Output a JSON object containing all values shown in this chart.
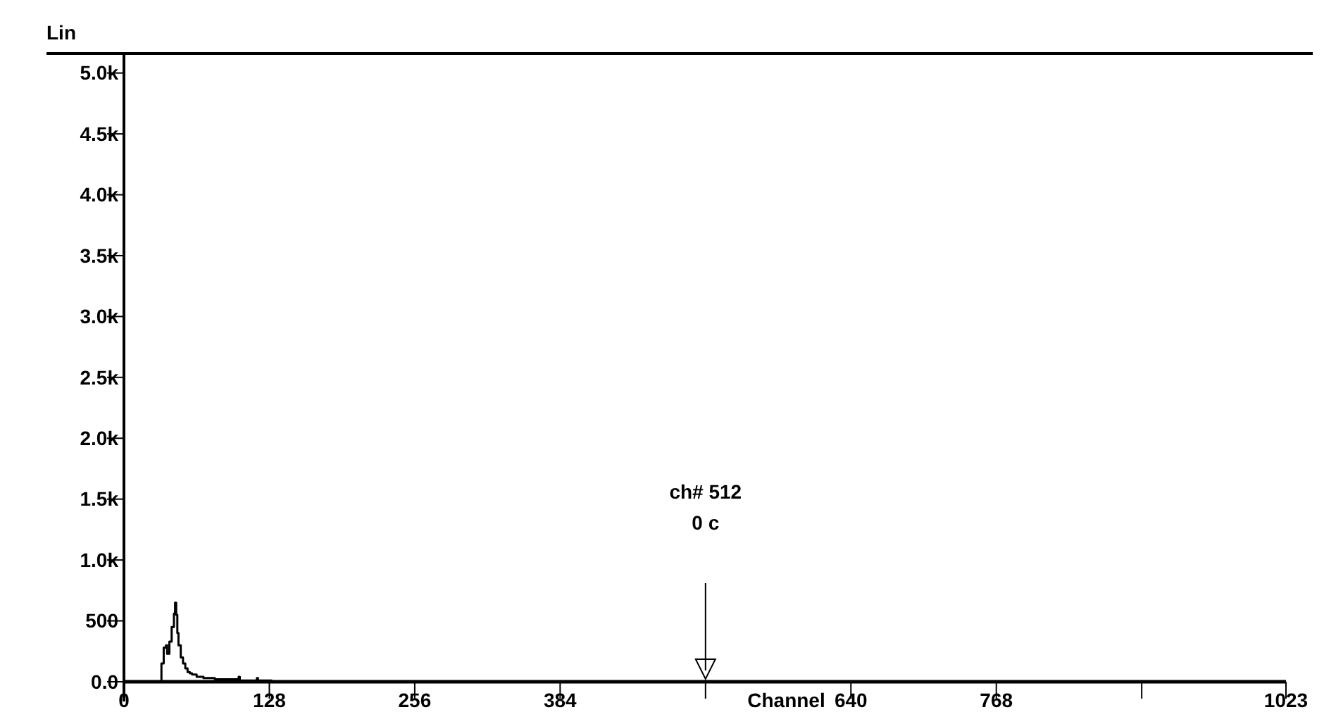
{
  "chart_data": {
    "type": "step",
    "ylabel": "Lin",
    "xlabel": "Channel",
    "x": [
      0,
      30,
      31,
      33,
      35,
      37,
      38,
      40,
      42,
      44,
      45,
      46,
      47,
      48,
      50,
      52,
      54,
      56,
      58,
      60,
      64,
      70,
      80,
      100,
      101,
      102,
      116,
      117,
      118,
      130,
      1023
    ],
    "values": [
      0,
      0,
      0,
      150,
      280,
      300,
      230,
      330,
      450,
      560,
      650,
      550,
      400,
      300,
      200,
      150,
      110,
      80,
      70,
      60,
      40,
      30,
      20,
      20,
      40,
      10,
      10,
      30,
      10,
      0,
      0
    ],
    "color": "#000000",
    "xlim": [
      0,
      1023
    ],
    "xticks": [
      0,
      128,
      256,
      384,
      {
        "value": 512,
        "label": null
      },
      640,
      768,
      {
        "value": 896,
        "label": null
      },
      1023
    ],
    "ylim": [
      0,
      5160
    ],
    "yticks": [
      {
        "value": 0,
        "label": "0.0"
      },
      500,
      {
        "value": 1000,
        "label": "1.0k"
      },
      {
        "value": 1500,
        "label": "1.5k"
      },
      {
        "value": 2000,
        "label": "2.0k"
      },
      {
        "value": 2500,
        "label": "2.5k"
      },
      {
        "value": 3000,
        "label": "3.0k"
      },
      {
        "value": 3500,
        "label": "3.5k"
      },
      {
        "value": 4000,
        "label": "4.0k"
      },
      {
        "value": 4500,
        "label": "4.5k"
      },
      {
        "value": 5000,
        "label": "5.0k"
      }
    ],
    "ref_lines": [
      {
        "axis": "x",
        "value": 512,
        "label": "ch# 512"
      }
    ],
    "annotations": [
      "0 c"
    ]
  }
}
